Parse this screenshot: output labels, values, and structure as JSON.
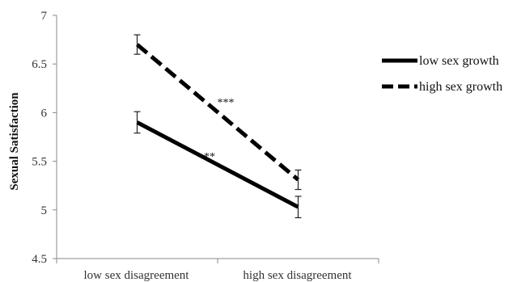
{
  "chart_data": {
    "type": "line",
    "categories": [
      "low sex disagreement",
      "high sex disagreement"
    ],
    "ylabel": "Sexual Satisfaction",
    "ylim": [
      4.5,
      7
    ],
    "yticks": [
      "4.5",
      "5",
      "5.5",
      "6",
      "6.5",
      "7"
    ],
    "grid": false,
    "legend_position": "right",
    "series": [
      {
        "name": "low sex growth",
        "values": [
          5.9,
          5.03
        ],
        "errors": [
          0.11,
          0.11
        ],
        "style": "solid",
        "color": "#000000"
      },
      {
        "name": "high sex growth",
        "values": [
          6.7,
          5.31
        ],
        "errors": [
          0.1,
          0.1
        ],
        "style": "dashed",
        "color": "#000000"
      }
    ],
    "annotations": [
      {
        "text": "***",
        "series": 1
      },
      {
        "text": "**",
        "series": 0
      }
    ]
  }
}
